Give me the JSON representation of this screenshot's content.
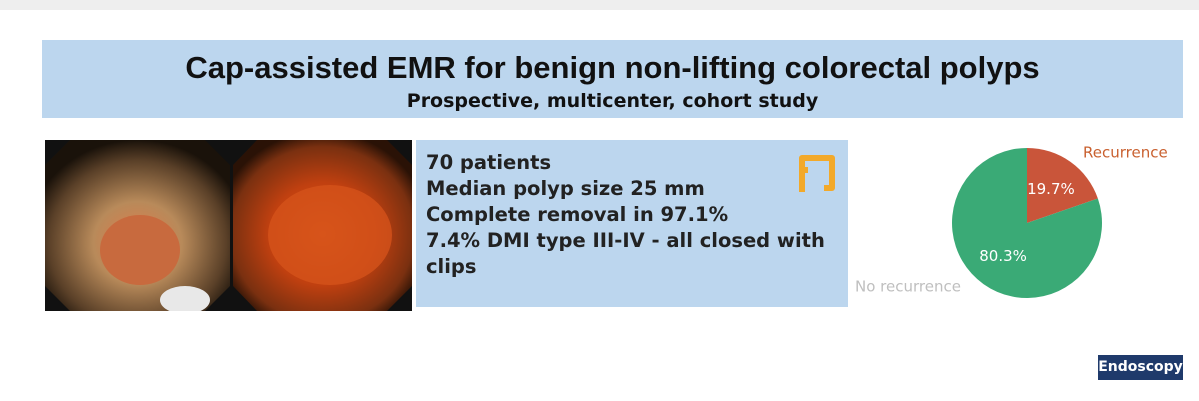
{
  "header": {
    "title": "Cap-assisted EMR for benign non-lifting colorectal polyps",
    "subtitle": "Prospective, multicenter, cohort study"
  },
  "findings": [
    "70 patients",
    "Median polyp size 25 mm",
    "Complete removal in 97.1%",
    "7.4% DMI type III-IV - all closed with clips"
  ],
  "chart_data": {
    "type": "pie",
    "categories": [
      "Recurrence",
      "No recurrence"
    ],
    "values": [
      19.7,
      80.3
    ],
    "value_labels": [
      "19.7%",
      "80.3%"
    ],
    "colors": [
      "#c9553a",
      "#3aaa76"
    ],
    "category_colors": [
      "#c9602f",
      "#bfbfbf"
    ]
  },
  "footer": {
    "badge": "Endoscopy"
  }
}
